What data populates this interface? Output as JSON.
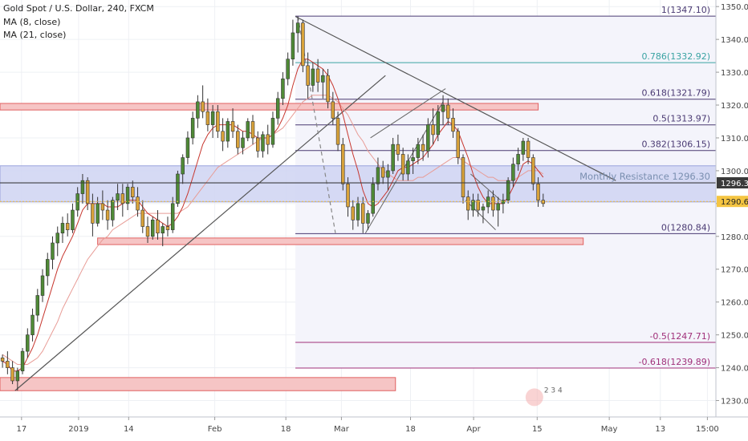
{
  "header": {
    "title": "Gold Spot / U.S. Dollar, 240, FXCM",
    "indicator_1": "MA (8, close)",
    "indicator_2": "MA (21, close)"
  },
  "colors": {
    "bull": "#4f8a36",
    "bear": "#d8a23a",
    "fib": "#4a3a73",
    "fib_786": "#3aa3a3",
    "fib_neg": "#a0307a",
    "zone_red": "#f6c5c5",
    "zone_red_stroke": "#e06060",
    "zone_blue": "#cfd4f2",
    "ma8": "#c7372f",
    "ma21": "#e89c96",
    "trend": "#555555",
    "price_tag_current": "#3a3a3a",
    "price_tag_prev": "#f5c542"
  },
  "chart_data": {
    "type": "candlestick",
    "symbol": "Gold Spot / U.S. Dollar",
    "timeframe": "240",
    "source": "FXCM",
    "y_axis": {
      "ylim": [
        1225,
        1352
      ],
      "ticks": [
        1230,
        1240,
        1250,
        1260,
        1270,
        1280,
        1290,
        1300,
        1310,
        1320,
        1330,
        1340,
        1350
      ]
    },
    "x_axis": {
      "range": [
        0,
        143
      ],
      "ticks": [
        {
          "label": "17",
          "x": 4.3
        },
        {
          "label": "2019",
          "x": 15.7
        },
        {
          "label": "14",
          "x": 25.7
        },
        {
          "label": "Feb",
          "x": 42.9
        },
        {
          "label": "18",
          "x": 57.1
        },
        {
          "label": "Mar",
          "x": 68.2
        },
        {
          "label": "18",
          "x": 82.0
        },
        {
          "label": "Apr",
          "x": 94.6
        },
        {
          "label": "15",
          "x": 107.3
        },
        {
          "label": "May",
          "x": 121.7
        },
        {
          "label": "13",
          "x": 131.9
        },
        {
          "label": "15:00",
          "x": 141.3
        }
      ]
    },
    "candles": [
      [
        1243,
        1244,
        1240,
        1242
      ],
      [
        1242,
        1245,
        1238,
        1240
      ],
      [
        1240,
        1242,
        1235,
        1236
      ],
      [
        1236,
        1240,
        1233,
        1239
      ],
      [
        1239,
        1246,
        1238,
        1245
      ],
      [
        1245,
        1252,
        1243,
        1250
      ],
      [
        1250,
        1258,
        1248,
        1256
      ],
      [
        1256,
        1264,
        1254,
        1262
      ],
      [
        1262,
        1270,
        1260,
        1268
      ],
      [
        1268,
        1275,
        1265,
        1273
      ],
      [
        1273,
        1280,
        1270,
        1278
      ],
      [
        1278,
        1283,
        1274,
        1281
      ],
      [
        1281,
        1286,
        1278,
        1284
      ],
      [
        1284,
        1287,
        1280,
        1282
      ],
      [
        1282,
        1290,
        1281,
        1288
      ],
      [
        1288,
        1295,
        1286,
        1293
      ],
      [
        1293,
        1299,
        1290,
        1297
      ],
      [
        1297,
        1298,
        1288,
        1290
      ],
      [
        1290,
        1293,
        1280,
        1284
      ],
      [
        1284,
        1292,
        1283,
        1290
      ],
      [
        1290,
        1294,
        1285,
        1288
      ],
      [
        1288,
        1291,
        1282,
        1285
      ],
      [
        1285,
        1292,
        1283,
        1291
      ],
      [
        1291,
        1296,
        1288,
        1293
      ],
      [
        1293,
        1296,
        1286,
        1290
      ],
      [
        1290,
        1296,
        1288,
        1295
      ],
      [
        1295,
        1297,
        1290,
        1292
      ],
      [
        1292,
        1295,
        1286,
        1288
      ],
      [
        1288,
        1291,
        1281,
        1283
      ],
      [
        1283,
        1286,
        1278,
        1280
      ],
      [
        1280,
        1286,
        1279,
        1285
      ],
      [
        1285,
        1288,
        1279,
        1281
      ],
      [
        1281,
        1284,
        1277,
        1283
      ],
      [
        1283,
        1286,
        1280,
        1282
      ],
      [
        1282,
        1292,
        1281,
        1290
      ],
      [
        1290,
        1300,
        1289,
        1299
      ],
      [
        1299,
        1305,
        1296,
        1304
      ],
      [
        1304,
        1312,
        1302,
        1310
      ],
      [
        1310,
        1318,
        1308,
        1316
      ],
      [
        1316,
        1323,
        1313,
        1321
      ],
      [
        1321,
        1326,
        1316,
        1318
      ],
      [
        1318,
        1322,
        1312,
        1314
      ],
      [
        1314,
        1320,
        1310,
        1318
      ],
      [
        1318,
        1320,
        1310,
        1312
      ],
      [
        1312,
        1316,
        1306,
        1309
      ],
      [
        1309,
        1316,
        1307,
        1315
      ],
      [
        1315,
        1319,
        1310,
        1312
      ],
      [
        1312,
        1314,
        1305,
        1307
      ],
      [
        1307,
        1312,
        1305,
        1310
      ],
      [
        1310,
        1316,
        1309,
        1315
      ],
      [
        1315,
        1317,
        1308,
        1310
      ],
      [
        1310,
        1312,
        1304,
        1306
      ],
      [
        1306,
        1312,
        1304,
        1311
      ],
      [
        1311,
        1314,
        1305,
        1308
      ],
      [
        1308,
        1318,
        1307,
        1316
      ],
      [
        1316,
        1324,
        1314,
        1322
      ],
      [
        1322,
        1330,
        1320,
        1328
      ],
      [
        1328,
        1336,
        1326,
        1334
      ],
      [
        1334,
        1346,
        1332,
        1342
      ],
      [
        1342,
        1347,
        1336,
        1345
      ],
      [
        1345,
        1346,
        1330,
        1332
      ],
      [
        1332,
        1336,
        1322,
        1326
      ],
      [
        1326,
        1333,
        1324,
        1331
      ],
      [
        1331,
        1334,
        1324,
        1327
      ],
      [
        1327,
        1331,
        1322,
        1329
      ],
      [
        1329,
        1331,
        1319,
        1321
      ],
      [
        1321,
        1324,
        1314,
        1316
      ],
      [
        1316,
        1318,
        1306,
        1308
      ],
      [
        1308,
        1310,
        1294,
        1296
      ],
      [
        1296,
        1298,
        1286,
        1289
      ],
      [
        1289,
        1291,
        1282,
        1285
      ],
      [
        1285,
        1292,
        1283,
        1290
      ],
      [
        1290,
        1292,
        1281,
        1284
      ],
      [
        1284,
        1288,
        1282,
        1287
      ],
      [
        1287,
        1298,
        1286,
        1296
      ],
      [
        1296,
        1304,
        1294,
        1301
      ],
      [
        1301,
        1303,
        1296,
        1298
      ],
      [
        1298,
        1302,
        1294,
        1300
      ],
      [
        1300,
        1310,
        1299,
        1308
      ],
      [
        1308,
        1311,
        1303,
        1305
      ],
      [
        1305,
        1307,
        1297,
        1299
      ],
      [
        1299,
        1305,
        1297,
        1303
      ],
      [
        1303,
        1307,
        1299,
        1304
      ],
      [
        1304,
        1310,
        1302,
        1308
      ],
      [
        1308,
        1311,
        1303,
        1306
      ],
      [
        1306,
        1316,
        1304,
        1314
      ],
      [
        1314,
        1319,
        1308,
        1311
      ],
      [
        1311,
        1320,
        1309,
        1318
      ],
      [
        1318,
        1323,
        1314,
        1320
      ],
      [
        1320,
        1322,
        1314,
        1316
      ],
      [
        1316,
        1319,
        1310,
        1312
      ],
      [
        1312,
        1313,
        1302,
        1304
      ],
      [
        1304,
        1305,
        1290,
        1292
      ],
      [
        1292,
        1294,
        1285,
        1288
      ],
      [
        1288,
        1293,
        1286,
        1291
      ],
      [
        1291,
        1293,
        1286,
        1288
      ],
      [
        1288,
        1290,
        1284,
        1289
      ],
      [
        1289,
        1294,
        1287,
        1292
      ],
      [
        1292,
        1294,
        1286,
        1288
      ],
      [
        1288,
        1292,
        1283,
        1290
      ],
      [
        1290,
        1293,
        1287,
        1291
      ],
      [
        1291,
        1298,
        1290,
        1297
      ],
      [
        1297,
        1304,
        1295,
        1302
      ],
      [
        1302,
        1307,
        1300,
        1305
      ],
      [
        1305,
        1310,
        1303,
        1309
      ],
      [
        1309,
        1310,
        1302,
        1304
      ],
      [
        1304,
        1305,
        1294,
        1296
      ],
      [
        1296,
        1298,
        1289,
        1291
      ],
      [
        1291,
        1293,
        1289,
        1290
      ]
    ],
    "ma8": [
      1242,
      1241,
      1239,
      1239,
      1240,
      1243,
      1246,
      1250,
      1255,
      1260,
      1265,
      1270,
      1274,
      1277,
      1280,
      1284,
      1288,
      1290,
      1290,
      1290,
      1290,
      1289,
      1289,
      1289,
      1290,
      1291,
      1291,
      1291,
      1289,
      1287,
      1286,
      1285,
      1284,
      1283,
      1284,
      1286,
      1289,
      1293,
      1298,
      1303,
      1308,
      1311,
      1313,
      1314,
      1314,
      1314,
      1314,
      1313,
      1312,
      1312,
      1311,
      1310,
      1310,
      1310,
      1311,
      1313,
      1316,
      1320,
      1326,
      1331,
      1334,
      1334,
      1333,
      1332,
      1331,
      1329,
      1326,
      1322,
      1317,
      1311,
      1305,
      1300,
      1294,
      1290,
      1289,
      1290,
      1292,
      1294,
      1297,
      1300,
      1301,
      1301,
      1302,
      1303,
      1304,
      1306,
      1308,
      1311,
      1313,
      1315,
      1314,
      1312,
      1308,
      1304,
      1299,
      1295,
      1292,
      1290,
      1290,
      1290,
      1290,
      1292,
      1295,
      1298,
      1302,
      1303,
      1302,
      1300,
      1298
    ],
    "ma21": [
      1244,
      1243,
      1242,
      1241,
      1241,
      1241,
      1242,
      1243,
      1245,
      1248,
      1251,
      1254,
      1258,
      1261,
      1264,
      1267,
      1270,
      1273,
      1275,
      1277,
      1279,
      1280,
      1282,
      1283,
      1284,
      1285,
      1286,
      1287,
      1287,
      1287,
      1287,
      1287,
      1287,
      1287,
      1287,
      1287,
      1288,
      1289,
      1291,
      1293,
      1295,
      1297,
      1299,
      1301,
      1302,
      1303,
      1304,
      1305,
      1306,
      1307,
      1308,
      1309,
      1310,
      1310,
      1311,
      1312,
      1313,
      1315,
      1317,
      1319,
      1321,
      1322,
      1323,
      1323,
      1323,
      1323,
      1322,
      1321,
      1319,
      1317,
      1314,
      1311,
      1309,
      1306,
      1304,
      1302,
      1300,
      1299,
      1298,
      1297,
      1297,
      1297,
      1297,
      1298,
      1298,
      1299,
      1300,
      1301,
      1302,
      1303,
      1304,
      1304,
      1303,
      1302,
      1301,
      1300,
      1299,
      1298,
      1298,
      1297,
      1297,
      1297,
      1297,
      1298,
      1299,
      1300,
      1300,
      1300,
      1299
    ],
    "fib_levels": [
      {
        "label": "1(1347.10)",
        "value": 1347.1
      },
      {
        "label": "0.786(1332.92)",
        "value": 1332.92
      },
      {
        "label": "0.618(1321.79)",
        "value": 1321.79
      },
      {
        "label": "0.5(1313.97)",
        "value": 1313.97
      },
      {
        "label": "0.382(1306.15)",
        "value": 1306.15
      },
      {
        "label": "0(1280.84)",
        "value": 1280.84
      },
      {
        "label": "-0.5(1247.71)",
        "value": 1247.71
      },
      {
        "label": "-0.618(1239.89)",
        "value": 1239.89
      }
    ],
    "zones": [
      {
        "y1": 1318.5,
        "y2": 1320.5,
        "x1": 0,
        "x2": 107.5
      },
      {
        "y1": 1277.5,
        "y2": 1279.5,
        "x1": 19.5,
        "x2": 116.5
      },
      {
        "y1": 1233,
        "y2": 1237,
        "x1": 0,
        "x2": 79
      }
    ],
    "monthly_resistance": {
      "label": "Monthly Resistance 1296.30",
      "value": 1296.3,
      "band": [
        1290.5,
        1301.5
      ]
    },
    "price_labels": [
      {
        "label": "1296.31",
        "value": 1296.31
      },
      {
        "label": "1290.65",
        "value": 1290.65
      }
    ],
    "trendlines": [
      {
        "points": [
          [
            3,
            1233
          ],
          [
            77,
            1329
          ]
        ]
      },
      {
        "points": [
          [
            59,
            1347
          ],
          [
            123,
            1297
          ]
        ]
      },
      {
        "points": [
          [
            59.5,
            1347
          ],
          [
            67,
            1281
          ]
        ],
        "dashed": true
      }
    ],
    "channels": [
      {
        "points": [
          [
            73,
            1281
          ],
          [
            88.5,
            1321
          ]
        ]
      },
      {
        "points": [
          [
            74,
            1310
          ],
          [
            89,
            1325
          ]
        ]
      },
      {
        "points": [
          [
            93,
            1291
          ],
          [
            99,
            1282
          ]
        ]
      },
      {
        "points": [
          [
            94,
            1299
          ],
          [
            100,
            1291
          ]
        ]
      }
    ],
    "watermark_text": "2 3 4"
  }
}
